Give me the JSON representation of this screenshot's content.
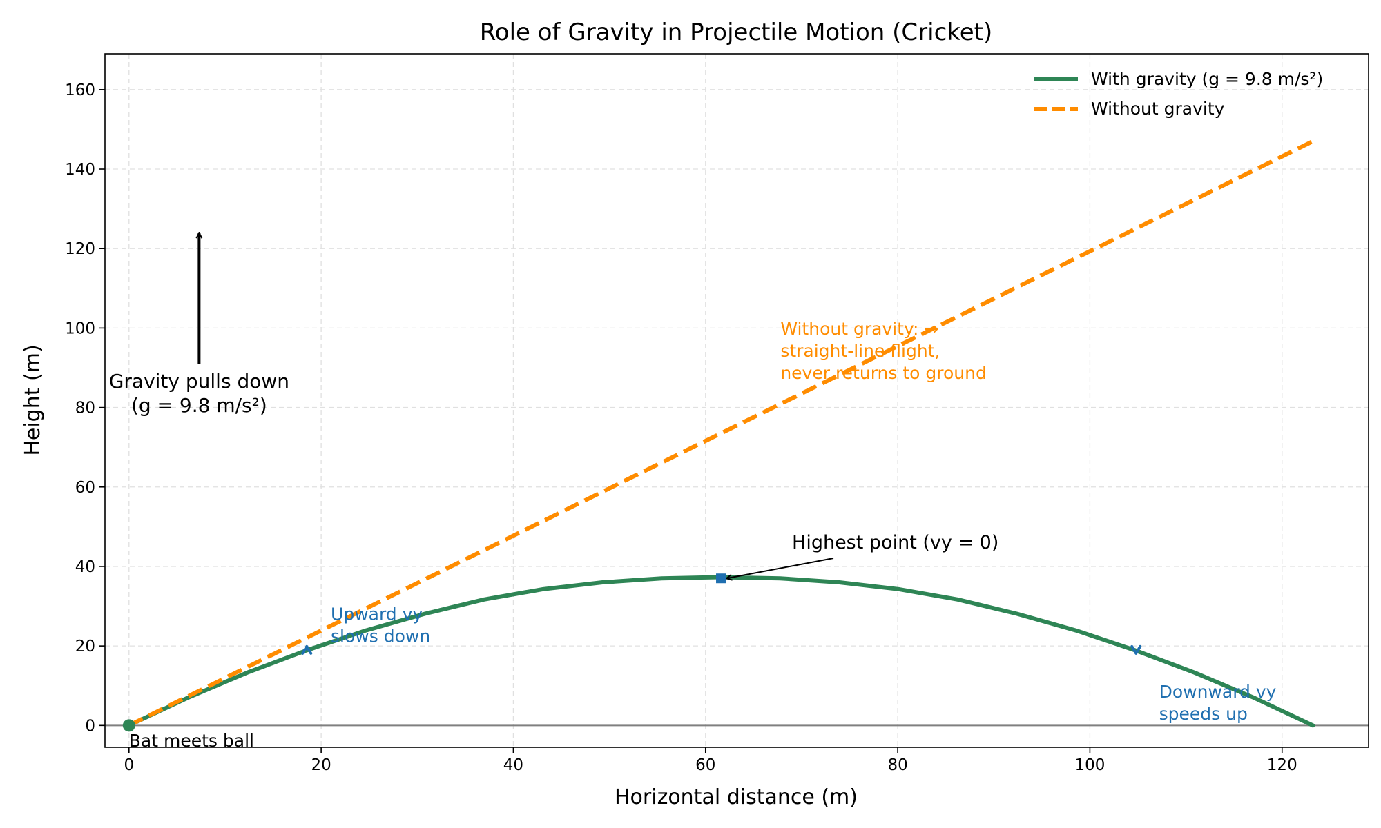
{
  "chart_data": {
    "type": "line",
    "title": "Role of Gravity in Projectile Motion (Cricket)",
    "xlabel": "Horizontal distance (m)",
    "ylabel": "Height (m)",
    "xlim": [
      -2.5,
      129.0
    ],
    "ylim": [
      -5.5,
      169.0
    ],
    "xticks": [
      0,
      20,
      40,
      60,
      80,
      100,
      120
    ],
    "yticks": [
      0,
      20,
      40,
      60,
      80,
      100,
      120,
      140,
      160
    ],
    "grid": true,
    "legend_position": "top-right",
    "series": [
      {
        "name": "With gravity (g = 9.8 m/s²)",
        "color": "#2e8555",
        "style": "solid",
        "x": [
          0,
          6.16,
          12.32,
          18.48,
          24.64,
          30.8,
          36.96,
          43.12,
          49.28,
          55.44,
          61.6,
          67.76,
          73.92,
          80.08,
          86.24,
          92.4,
          98.56,
          104.72,
          110.88,
          117.04,
          123.2
        ],
        "y": [
          0,
          7.0,
          13.3,
          18.9,
          23.9,
          28.1,
          31.7,
          34.3,
          36.0,
          37.0,
          37.3,
          37.0,
          36.0,
          34.3,
          31.7,
          28.1,
          23.9,
          18.9,
          13.3,
          7.0,
          0
        ]
      },
      {
        "name": "Without gravity",
        "color": "#ff8c00",
        "style": "dashed",
        "x": [
          0,
          123.2
        ],
        "y": [
          0,
          147
        ]
      }
    ],
    "markers": [
      {
        "name": "launch-point",
        "x": 0,
        "y": 0,
        "shape": "circle",
        "color": "#2e8555"
      },
      {
        "name": "upward-velocity-marker",
        "x": 18.5,
        "y": 19.0,
        "shape": "up-arrow",
        "color": "#1f6fb0"
      },
      {
        "name": "apex-marker",
        "x": 61.6,
        "y": 37.0,
        "shape": "square",
        "color": "#1f6fb0"
      },
      {
        "name": "downward-velocity-marker",
        "x": 104.8,
        "y": 19.0,
        "shape": "down-arrow",
        "color": "#1f6fb0"
      }
    ],
    "annotations": {
      "bat": {
        "text": "Bat meets ball",
        "x": 0,
        "y": -5.3
      },
      "apex": {
        "text": "Highest point (vy = 0)",
        "x": 69,
        "y": 44.5,
        "arrow_to": [
          61.6,
          37.0
        ]
      },
      "upward": {
        "lines": [
          "Upward vy",
          "slows down"
        ],
        "x": 21,
        "y": 26.5,
        "color": "#1f6fb0"
      },
      "downward": {
        "lines": [
          "Downward vy",
          "speeds up"
        ],
        "x": 107.2,
        "y": 7.0,
        "color": "#1f6fb0"
      },
      "no_gravity": {
        "lines": [
          "Without gravity: →",
          "straight-line flight,",
          "never returns to ground"
        ],
        "x": 67.8,
        "y": 98.3,
        "color": "#ff8c00"
      },
      "gravity": {
        "lines": [
          "Gravity pulls down",
          "(g = 9.8 m/s²)"
        ],
        "x": 7.3,
        "y": 85.0,
        "arrow_from": [
          7.3,
          91.0
        ],
        "arrow_to": [
          7.3,
          124.0
        ]
      }
    }
  }
}
